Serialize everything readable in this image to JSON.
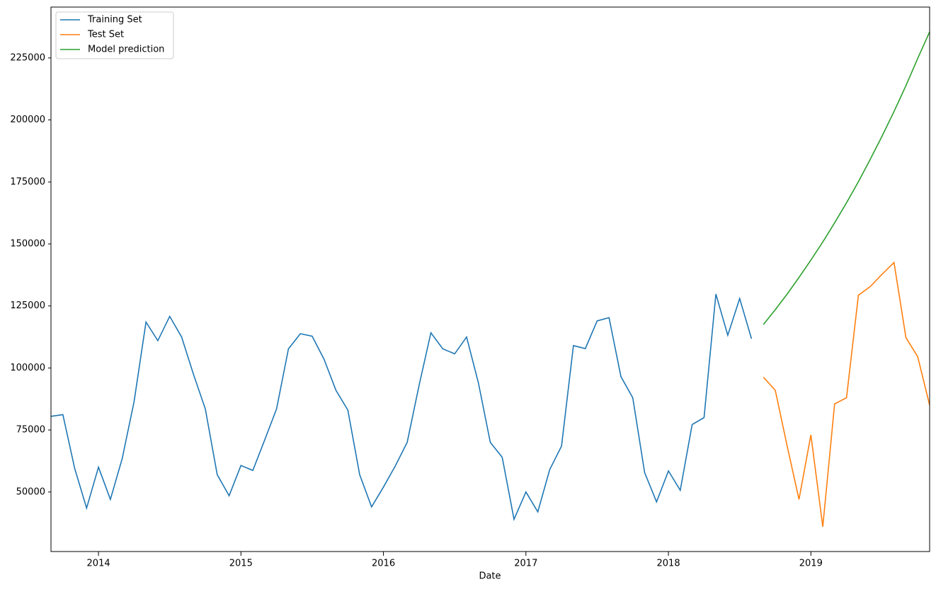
{
  "chart_data": {
    "type": "line",
    "x_label": "Date",
    "x": [
      "2013-09",
      "2013-10",
      "2013-11",
      "2013-12",
      "2014-01",
      "2014-02",
      "2014-03",
      "2014-04",
      "2014-05",
      "2014-06",
      "2014-07",
      "2014-08",
      "2014-09",
      "2014-10",
      "2014-11",
      "2014-12",
      "2015-01",
      "2015-02",
      "2015-03",
      "2015-04",
      "2015-05",
      "2015-06",
      "2015-07",
      "2015-08",
      "2015-09",
      "2015-10",
      "2015-11",
      "2015-12",
      "2016-01",
      "2016-02",
      "2016-03",
      "2016-04",
      "2016-05",
      "2016-06",
      "2016-07",
      "2016-08",
      "2016-09",
      "2016-10",
      "2016-11",
      "2016-12",
      "2017-01",
      "2017-02",
      "2017-03",
      "2017-04",
      "2017-05",
      "2017-06",
      "2017-07",
      "2017-08",
      "2017-09",
      "2017-10",
      "2017-11",
      "2017-12",
      "2018-01",
      "2018-02",
      "2018-03",
      "2018-04",
      "2018-05",
      "2018-06",
      "2018-07",
      "2018-08",
      "2018-09",
      "2018-10",
      "2018-11",
      "2018-12",
      "2019-01",
      "2019-02",
      "2019-03",
      "2019-04",
      "2019-05",
      "2019-06",
      "2019-07",
      "2019-08",
      "2019-09",
      "2019-10",
      "2019-11"
    ],
    "series": [
      {
        "name": "Training Set",
        "color": "#1f77b4",
        "values": [
          80500,
          81200,
          59500,
          43500,
          60000,
          47000,
          63500,
          86500,
          118500,
          111000,
          120800,
          112500,
          97500,
          83500,
          57000,
          48500,
          60700,
          58700,
          71000,
          83500,
          107700,
          113800,
          112800,
          103500,
          91000,
          83000,
          57000,
          44000,
          52000,
          60500,
          70000,
          93000,
          114200,
          107700,
          105700,
          112500,
          94000,
          70000,
          64000,
          39000,
          50000,
          42000,
          59000,
          68500,
          109000,
          107800,
          119000,
          120300,
          96500,
          88000,
          57800,
          46000,
          58500,
          50700,
          77200,
          80000,
          129800,
          113200,
          128000,
          111800,
          null,
          null,
          null,
          null,
          null,
          null,
          null,
          null,
          null,
          null,
          null,
          null,
          null,
          null,
          null
        ]
      },
      {
        "name": "Test Set",
        "color": "#ff7f0e",
        "values": [
          null,
          null,
          null,
          null,
          null,
          null,
          null,
          null,
          null,
          null,
          null,
          null,
          null,
          null,
          null,
          null,
          null,
          null,
          null,
          null,
          null,
          null,
          null,
          null,
          null,
          null,
          null,
          null,
          null,
          null,
          null,
          null,
          null,
          null,
          null,
          null,
          null,
          null,
          null,
          null,
          null,
          null,
          null,
          null,
          null,
          null,
          null,
          null,
          null,
          null,
          null,
          null,
          null,
          null,
          null,
          null,
          null,
          null,
          null,
          null,
          96300,
          91000,
          68500,
          47000,
          73000,
          36000,
          85500,
          88000,
          129300,
          132800,
          137800,
          142500,
          112300,
          104500,
          85000
        ]
      },
      {
        "name": "Model prediction",
        "color": "#2ca02c",
        "values": [
          null,
          null,
          null,
          null,
          null,
          null,
          null,
          null,
          null,
          null,
          null,
          null,
          null,
          null,
          null,
          null,
          null,
          null,
          null,
          null,
          null,
          null,
          null,
          null,
          null,
          null,
          null,
          null,
          null,
          null,
          null,
          null,
          null,
          null,
          null,
          null,
          null,
          null,
          null,
          null,
          null,
          null,
          null,
          null,
          null,
          null,
          null,
          null,
          null,
          null,
          null,
          null,
          null,
          null,
          null,
          null,
          null,
          null,
          null,
          null,
          117500,
          123500,
          129800,
          136500,
          143500,
          150800,
          158500,
          166600,
          175100,
          184100,
          193500,
          203400,
          213800,
          224800,
          235500
        ]
      }
    ],
    "xlim": [
      "2013-09",
      "2019-11"
    ],
    "xticks": [
      {
        "value": "2014-01",
        "label": "2014"
      },
      {
        "value": "2015-01",
        "label": "2015"
      },
      {
        "value": "2016-01",
        "label": "2016"
      },
      {
        "value": "2017-01",
        "label": "2017"
      },
      {
        "value": "2018-01",
        "label": "2018"
      },
      {
        "value": "2019-01",
        "label": "2019"
      }
    ],
    "ylim": [
      26000,
      245500
    ],
    "yticks": [
      50000,
      75000,
      100000,
      125000,
      150000,
      175000,
      200000,
      225000
    ],
    "legend": "upper left"
  }
}
